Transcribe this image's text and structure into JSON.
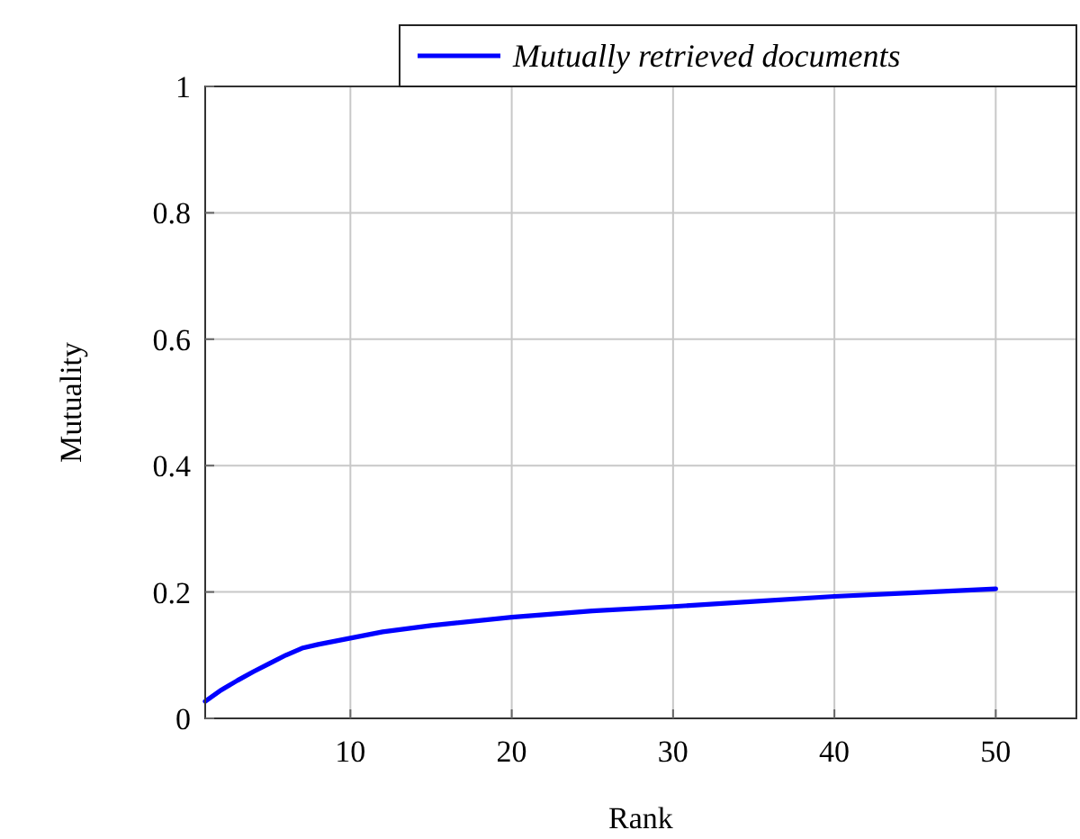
{
  "chart_data": {
    "type": "line",
    "xlabel": "Rank",
    "ylabel": "Mutuality",
    "x": [
      1,
      2,
      3,
      4,
      5,
      6,
      7,
      8,
      10,
      12,
      15,
      20,
      25,
      30,
      35,
      40,
      45,
      50
    ],
    "series": [
      {
        "name": "Mutually retrieved documents",
        "color": "#0000ff",
        "values": [
          0.027,
          0.045,
          0.06,
          0.074,
          0.087,
          0.1,
          0.111,
          0.117,
          0.127,
          0.137,
          0.147,
          0.16,
          0.17,
          0.177,
          0.185,
          0.193,
          0.199,
          0.205
        ]
      }
    ],
    "xlim": [
      1,
      55
    ],
    "xticks": [
      10,
      20,
      30,
      40,
      50
    ],
    "ylim": [
      0,
      1
    ],
    "yticks": [
      0,
      0.2,
      0.4,
      0.6,
      0.8,
      1
    ],
    "grid": true,
    "legend": "top right",
    "marker": "none",
    "line_style": "solid"
  }
}
